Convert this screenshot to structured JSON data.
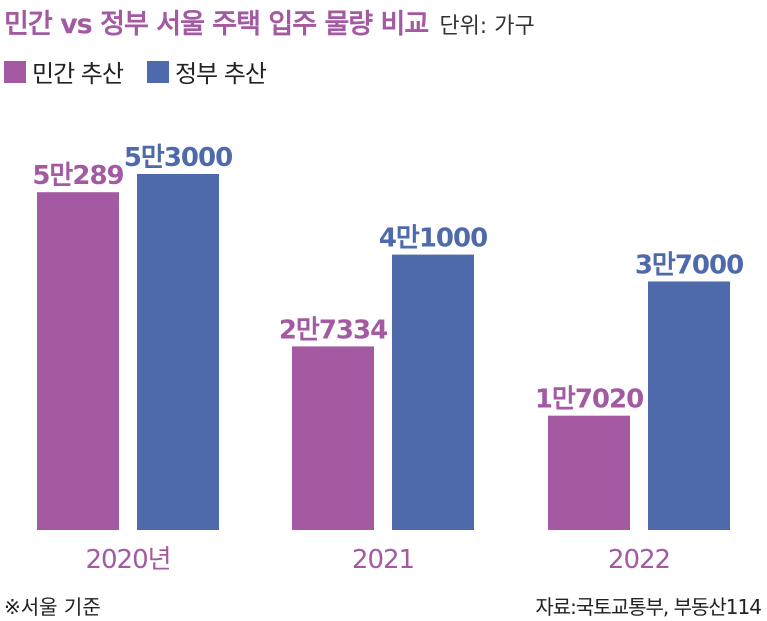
{
  "header": {
    "title": "민간 vs 정부 서울 주택 입주 물량 비교",
    "unit": "단위: 가구"
  },
  "legend": {
    "items": [
      {
        "label": "민간 추산",
        "color": "#a35aa2"
      },
      {
        "label": "정부 추산",
        "color": "#4f6aab"
      }
    ]
  },
  "chart_data": {
    "type": "bar",
    "title": "민간 vs 정부 서울 주택 입주 물량 비교",
    "categories": [
      "2020년",
      "2021",
      "2022"
    ],
    "series": [
      {
        "name": "민간 추산",
        "color": "#a35aa2",
        "values": [
          50289,
          27334,
          17020
        ],
        "labels": [
          "5만289",
          "2만7334",
          "1만7020"
        ]
      },
      {
        "name": "정부 추산",
        "color": "#4f6aab",
        "values": [
          53000,
          41000,
          37000
        ],
        "labels": [
          "5만3000",
          "4만1000",
          "3만7000"
        ]
      }
    ],
    "ylim": [
      0,
      53000
    ],
    "grid": false,
    "legend_position": "top-left"
  },
  "footer": {
    "note": "※서울 기준",
    "source": "자료:국토교통부, 부동산114"
  }
}
